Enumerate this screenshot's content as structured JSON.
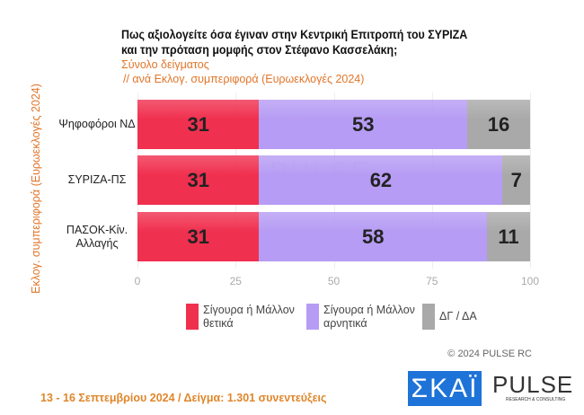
{
  "title_line1": "Πως αξιολογείτε όσα έγιναν στην Κεντρική Επιτροπή του ΣΥΡΙΖΑ",
  "title_line2": "και την πρόταση μομφής στον Στέφανο Κασσελάκη;",
  "subtitle1": "Σύνολο δείγματος",
  "subtitle2": " // ανά Εκλογ. συμπεριφορά (Ευρωεκλογές 2024)",
  "copyright": "© 2024 PULSE RC",
  "footer": "13 - 16 Σεπτεμβρίου 2024  /  Δείγμα:  1.301 συνεντεύξεις",
  "logos": {
    "skai": "ΣΚΑΪ",
    "pulse": "PULSE",
    "pulse_sub": "RESEARCH & CONSULTING"
  },
  "chart_data": {
    "type": "bar",
    "orientation": "horizontal",
    "stacked": true,
    "ylabel": "Εκλογ. συμπεριφορά (Ευρωεκλογές 2024)",
    "categories": [
      "Ψηφοφόροι ΝΔ",
      "ΣΥΡΙΖΑ-ΠΣ",
      "ΠΑΣΟΚ-Κίν. Αλλαγής"
    ],
    "series": [
      {
        "name": "Σίγουρα ή Μάλλον θετικά",
        "values": [
          31,
          31,
          31
        ],
        "color": "#f0304f"
      },
      {
        "name": "Σίγουρα ή Μάλλον αρνητικά",
        "values": [
          53,
          62,
          58
        ],
        "color": "#b69cf4"
      },
      {
        "name": "ΔΓ / ΔΑ",
        "values": [
          16,
          7,
          11
        ],
        "color": "#a9a9a9"
      }
    ],
    "xlim": [
      0,
      100
    ],
    "xticks": [
      "0",
      "25",
      "50",
      "75",
      "100"
    ],
    "legend": "bottom"
  }
}
